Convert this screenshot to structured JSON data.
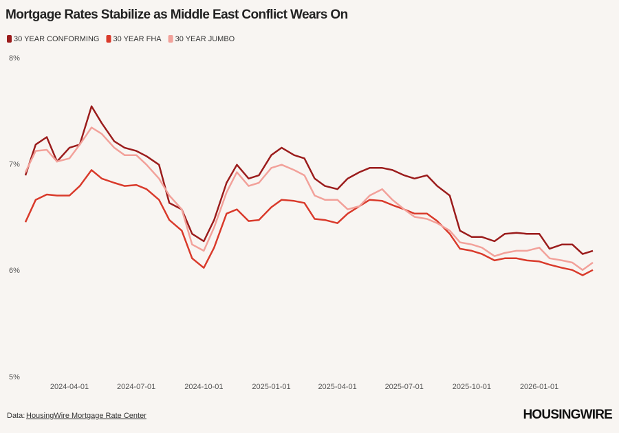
{
  "chart_data": {
    "type": "line",
    "title": "Mortgage Rates Stabilize as Middle East Conflict Wears On",
    "x": [
      "2024-02-01",
      "2024-02-15",
      "2024-03-01",
      "2024-03-15",
      "2024-04-01",
      "2024-04-15",
      "2024-05-01",
      "2024-05-15",
      "2024-06-01",
      "2024-06-15",
      "2024-07-01",
      "2024-07-15",
      "2024-08-01",
      "2024-08-15",
      "2024-09-01",
      "2024-09-15",
      "2024-10-01",
      "2024-10-15",
      "2024-11-01",
      "2024-11-15",
      "2024-12-01",
      "2024-12-15",
      "2025-01-01",
      "2025-01-15",
      "2025-02-01",
      "2025-02-15",
      "2025-03-01",
      "2025-03-15",
      "2025-04-01",
      "2025-04-15",
      "2025-05-01",
      "2025-05-15",
      "2025-06-01",
      "2025-06-15",
      "2025-07-01",
      "2025-07-15",
      "2025-08-01",
      "2025-08-15",
      "2025-09-01",
      "2025-09-15",
      "2025-10-01",
      "2025-10-15",
      "2025-11-01",
      "2025-11-15",
      "2025-12-01",
      "2025-12-15",
      "2026-01-01",
      "2026-01-15",
      "2026-02-01",
      "2026-02-15",
      "2026-03-01",
      "2026-03-15"
    ],
    "series": [
      {
        "name": "30 YEAR CONFORMING",
        "color": "#9b1c1c",
        "values": [
          6.9,
          7.19,
          7.26,
          7.03,
          7.16,
          7.19,
          7.55,
          7.39,
          7.22,
          7.16,
          7.13,
          7.08,
          7.0,
          6.64,
          6.58,
          6.35,
          6.28,
          6.48,
          6.83,
          7.0,
          6.87,
          6.9,
          7.09,
          7.16,
          7.09,
          7.06,
          6.87,
          6.8,
          6.77,
          6.87,
          6.93,
          6.97,
          6.97,
          6.95,
          6.9,
          6.87,
          6.9,
          6.8,
          6.71,
          6.38,
          6.32,
          6.32,
          6.28,
          6.35,
          6.36,
          6.35,
          6.35,
          6.21,
          6.25,
          6.25,
          6.16,
          6.19
        ]
      },
      {
        "name": "30 YEAR FHA",
        "color": "#d93a2b",
        "values": [
          6.46,
          6.67,
          6.72,
          6.71,
          6.71,
          6.8,
          6.95,
          6.87,
          6.83,
          6.8,
          6.81,
          6.77,
          6.67,
          6.48,
          6.38,
          6.12,
          6.03,
          6.22,
          6.54,
          6.58,
          6.47,
          6.48,
          6.6,
          6.67,
          6.66,
          6.64,
          6.49,
          6.48,
          6.45,
          6.54,
          6.61,
          6.67,
          6.66,
          6.62,
          6.58,
          6.54,
          6.54,
          6.47,
          6.35,
          6.21,
          6.19,
          6.16,
          6.1,
          6.12,
          6.12,
          6.1,
          6.09,
          6.06,
          6.03,
          6.01,
          5.96,
          6.01
        ]
      },
      {
        "name": "30 YEAR JUMBO",
        "color": "#f2a19a",
        "values": [
          6.93,
          7.13,
          7.14,
          7.03,
          7.06,
          7.19,
          7.35,
          7.29,
          7.16,
          7.09,
          7.09,
          7.0,
          6.87,
          6.71,
          6.58,
          6.25,
          6.19,
          6.41,
          6.74,
          6.93,
          6.8,
          6.83,
          6.97,
          7.0,
          6.95,
          6.9,
          6.71,
          6.67,
          6.67,
          6.58,
          6.61,
          6.71,
          6.77,
          6.67,
          6.58,
          6.51,
          6.49,
          6.45,
          6.38,
          6.27,
          6.25,
          6.22,
          6.14,
          6.17,
          6.19,
          6.19,
          6.22,
          6.12,
          6.1,
          6.08,
          6.01,
          6.08
        ]
      }
    ],
    "xlim": [
      "2024-02-01",
      "2026-03-15"
    ],
    "xticks": [
      "2024-04-01",
      "2024-07-01",
      "2024-10-01",
      "2025-01-01",
      "2025-04-01",
      "2025-07-01",
      "2025-10-01",
      "2026-01-01"
    ],
    "ylim": [
      5,
      8
    ],
    "yticks": [
      {
        "value": 5,
        "label": "5%"
      },
      {
        "value": 6,
        "label": "6%"
      },
      {
        "value": 7,
        "label": "7%"
      },
      {
        "value": 8,
        "label": "8%"
      }
    ],
    "grid": false,
    "source_prefix": "Data:",
    "source_link": "HousingWire Mortgage Rate Center",
    "logo": "HOUSINGWIRE"
  }
}
